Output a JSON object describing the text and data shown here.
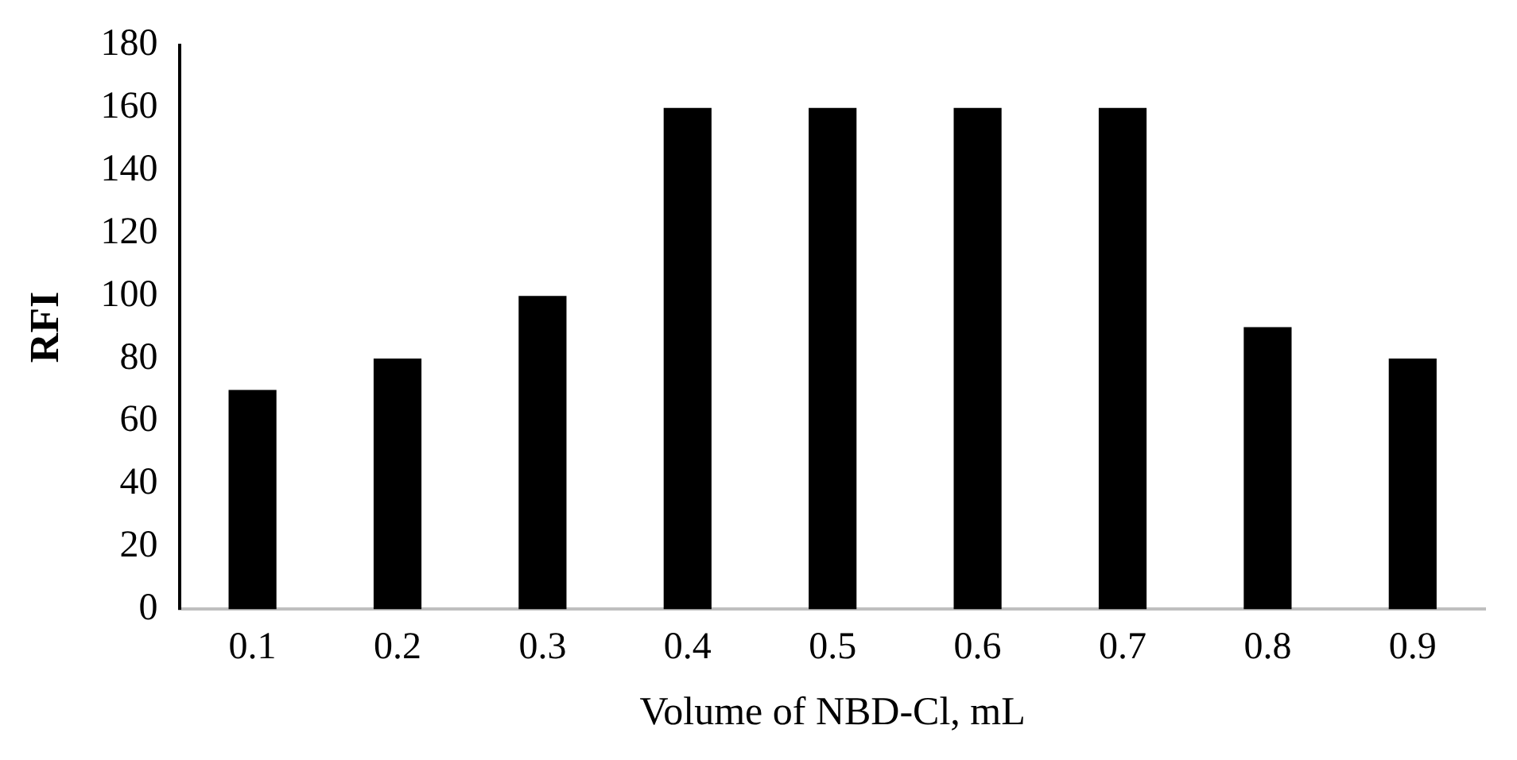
{
  "chart_data": {
    "type": "bar",
    "xlabel": "Volume of NBD-Cl, mL",
    "ylabel": "RFI",
    "categories": [
      "0.1",
      "0.2",
      "0.3",
      "0.4",
      "0.5",
      "0.6",
      "0.7",
      "0.8",
      "0.9"
    ],
    "values": [
      70,
      80,
      100,
      160,
      160,
      160,
      160,
      90,
      80
    ],
    "color": "#000000",
    "ylim": [
      0,
      180
    ],
    "yticks": [
      0,
      20,
      40,
      60,
      80,
      100,
      120,
      140,
      160,
      180
    ],
    "grid": false,
    "legend": false
  }
}
